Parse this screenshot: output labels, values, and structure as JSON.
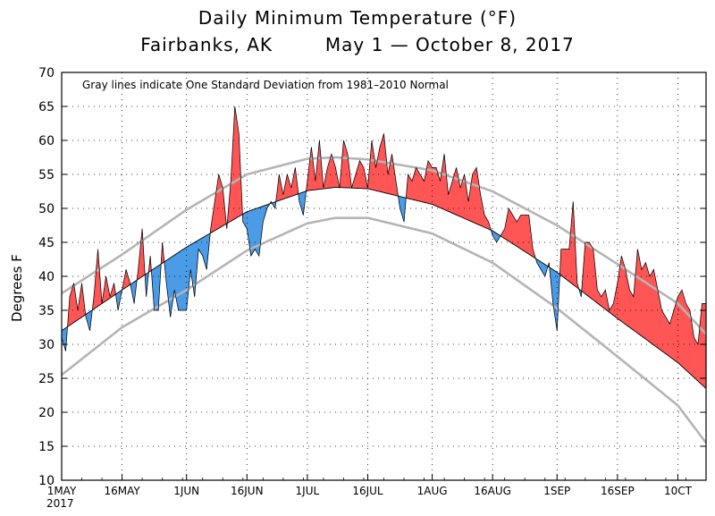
{
  "chart_data": {
    "type": "area",
    "title": "Daily Minimum Temperature (°F)",
    "subtitle": "Fairbanks, AK        May 1 — October 8, 2017",
    "ylabel": "Degrees F",
    "xlabel": "",
    "annotation": "Gray lines indicate One Standard Deviation from 1981–2010 Normal",
    "year_label": "2017",
    "ylim": [
      10,
      70
    ],
    "yticks": [
      10,
      15,
      20,
      25,
      30,
      35,
      40,
      45,
      50,
      55,
      60,
      65,
      70
    ],
    "xlim_days": [
      0,
      160
    ],
    "xticks": [
      {
        "day": 0,
        "label": "1MAY"
      },
      {
        "day": 15,
        "label": "16MAY"
      },
      {
        "day": 31,
        "label": "1JUN"
      },
      {
        "day": 46,
        "label": "16JUN"
      },
      {
        "day": 61,
        "label": "1JUL"
      },
      {
        "day": 76,
        "label": "16JUL"
      },
      {
        "day": 92,
        "label": "1AUG"
      },
      {
        "day": 107,
        "label": "16AUG"
      },
      {
        "day": 123,
        "label": "1SEP"
      },
      {
        "day": 138,
        "label": "16SEP"
      },
      {
        "day": 153,
        "label": "10CT"
      }
    ],
    "grid": true,
    "colors": {
      "above": "#ff5555",
      "below": "#4b9be6",
      "normal": "#000000",
      "stddev": "#b4b4b4"
    },
    "normal_curve": [
      [
        0,
        32
      ],
      [
        15,
        38
      ],
      [
        31,
        44.3
      ],
      [
        46,
        49.5
      ],
      [
        61,
        52.6
      ],
      [
        68,
        53.1
      ],
      [
        76,
        52.9
      ],
      [
        92,
        50.6
      ],
      [
        107,
        46.7
      ],
      [
        123,
        40.6
      ],
      [
        138,
        33.8
      ],
      [
        153,
        27.3
      ],
      [
        160,
        23.5
      ]
    ],
    "stddev_upper": [
      [
        0,
        37.5
      ],
      [
        15,
        43.2
      ],
      [
        31,
        49.8
      ],
      [
        46,
        55
      ],
      [
        61,
        57.3
      ],
      [
        68,
        57.5
      ],
      [
        76,
        57.2
      ],
      [
        92,
        55.6
      ],
      [
        107,
        52.5
      ],
      [
        123,
        47.5
      ],
      [
        138,
        41.8
      ],
      [
        153,
        36
      ],
      [
        160,
        31.5
      ]
    ],
    "stddev_lower": [
      [
        0,
        25.5
      ],
      [
        15,
        32.5
      ],
      [
        31,
        38
      ],
      [
        46,
        43.8
      ],
      [
        61,
        47.8
      ],
      [
        68,
        48.6
      ],
      [
        76,
        48.6
      ],
      [
        92,
        46.3
      ],
      [
        107,
        42
      ],
      [
        123,
        35.3
      ],
      [
        138,
        28.2
      ],
      [
        153,
        21
      ],
      [
        160,
        15.5
      ]
    ],
    "series": [
      {
        "name": "Daily Minimum Temperature 2017",
        "values": [
          31,
          29,
          37,
          39,
          35,
          39,
          34,
          32,
          37,
          44,
          36,
          40,
          37,
          39,
          35,
          38,
          41,
          39,
          36,
          41,
          47,
          37,
          43,
          35,
          35,
          45,
          39,
          34,
          38,
          35,
          35,
          35,
          41,
          37,
          44,
          43,
          41,
          47,
          51,
          55,
          53,
          47,
          54,
          65,
          61,
          48,
          47,
          43,
          44,
          43,
          48,
          50,
          51,
          50,
          55,
          52,
          55,
          53,
          56,
          51,
          49,
          54,
          59,
          54,
          60,
          53,
          56,
          58,
          56,
          53,
          60,
          58,
          53,
          55,
          57,
          56,
          53,
          60,
          56,
          59,
          61,
          55,
          58,
          54,
          50,
          48,
          55,
          54,
          56,
          55,
          54,
          57,
          56,
          56,
          54,
          58,
          52,
          54,
          56,
          53,
          55,
          51,
          55,
          56,
          52,
          49,
          48,
          46,
          45,
          46,
          47,
          50,
          49,
          48,
          49,
          49,
          49,
          44,
          42,
          41,
          40,
          42,
          36,
          32,
          44,
          44,
          44,
          51,
          39,
          37,
          45,
          45,
          44,
          38,
          37,
          38,
          35,
          36,
          39,
          43,
          41,
          38,
          37,
          44,
          41,
          42,
          40,
          41,
          38,
          35,
          34,
          33,
          35,
          37,
          38,
          36,
          35,
          31,
          30,
          36,
          36
        ]
      }
    ]
  }
}
